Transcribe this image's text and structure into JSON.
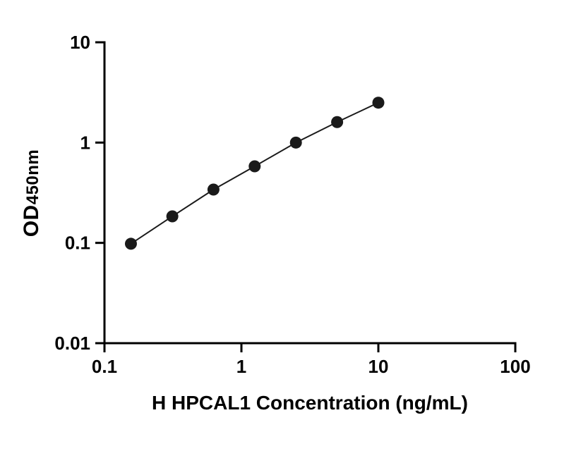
{
  "page": {
    "background": "#ffffff"
  },
  "chart_data": {
    "type": "scatter",
    "title": "",
    "xlabel": "H HPCAL1 Concentration (ng/mL)",
    "ylabel_main": "OD",
    "ylabel_sub": "450nm",
    "xscale": "log",
    "yscale": "log",
    "xlim": [
      0.1,
      100
    ],
    "ylim": [
      0.01,
      10
    ],
    "x_tick_labels": [
      "0.1",
      "1",
      "10",
      "100"
    ],
    "x_tick_values": [
      0.1,
      1,
      10,
      100
    ],
    "y_tick_labels": [
      "0.01",
      "0.1",
      "1",
      "10"
    ],
    "y_tick_values": [
      0.01,
      0.1,
      1,
      10
    ],
    "x": [
      0.156,
      0.313,
      0.625,
      1.25,
      2.5,
      5,
      10
    ],
    "y": [
      0.098,
      0.184,
      0.34,
      0.58,
      1.0,
      1.6,
      2.5
    ],
    "line_color": "#1a1a1a",
    "marker_color": "#1a1a1a",
    "axis_color": "#000000",
    "grid": false,
    "legend": null
  }
}
